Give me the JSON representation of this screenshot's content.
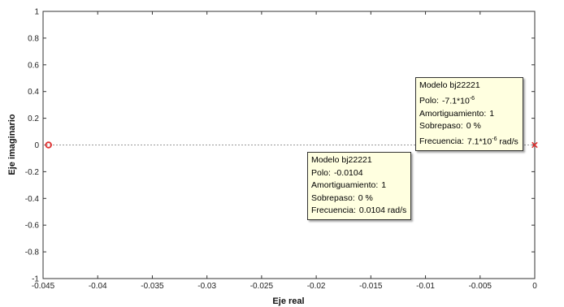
{
  "chart_data": {
    "type": "scatter",
    "xlabel": "Eje real",
    "ylabel": "Eje imaginario",
    "xlim": [
      -0.045,
      0
    ],
    "ylim": [
      -1,
      1
    ],
    "xticks": [
      -0.045,
      -0.04,
      -0.035,
      -0.03,
      -0.025,
      -0.02,
      -0.015,
      -0.01,
      -0.005,
      0
    ],
    "xtick_labels": [
      "-0.045",
      "-0.04",
      "-0.035",
      "-0.03",
      "-0.025",
      "-0.02",
      "-0.015",
      "-0.01",
      "-0.005",
      "0"
    ],
    "yticks": [
      -1,
      -0.8,
      -0.6,
      -0.4,
      -0.2,
      0,
      0.2,
      0.4,
      0.6,
      0.8,
      1
    ],
    "ytick_labels": [
      "-1",
      "-0.8",
      "-0.6",
      "-0.4",
      "-0.2",
      "0",
      "0.2",
      "0.4",
      "0.6",
      "0.8",
      "1"
    ],
    "zero_line": {
      "y": 0,
      "color": "#999999",
      "style": "dotted"
    },
    "series": [
      {
        "marker": "x",
        "color": "#e03030",
        "points": [
          {
            "x": -0.0104,
            "y": 0
          },
          {
            "x": -7.1e-06,
            "y": 0
          }
        ]
      },
      {
        "marker": "o",
        "color": "#e03030",
        "points": [
          {
            "x": -0.0445,
            "y": 0
          }
        ]
      }
    ],
    "datatips": [
      {
        "model": "Modelo bj22221",
        "pole_label": "Polo:",
        "pole_value": "-0.0104",
        "damping_label": "Amortiguamiento:",
        "damping_value": "1",
        "overshoot_label": "Sobrepaso:",
        "overshoot_value": "0 %",
        "freq_label": "Frecuencia:",
        "freq_value": "0.0104",
        "freq_unit": "rad/s"
      },
      {
        "model": "Modelo bj22221",
        "pole_label": "Polo:",
        "pole_value": "-7.1*10",
        "pole_exp": "-6",
        "damping_label": "Amortiguamiento:",
        "damping_value": "1",
        "overshoot_label": "Sobrepaso:",
        "overshoot_value": "0 %",
        "freq_label": "Frecuencia:",
        "freq_value": "7.1*10",
        "freq_exp": "-6",
        "freq_unit": "rad/s"
      }
    ]
  }
}
